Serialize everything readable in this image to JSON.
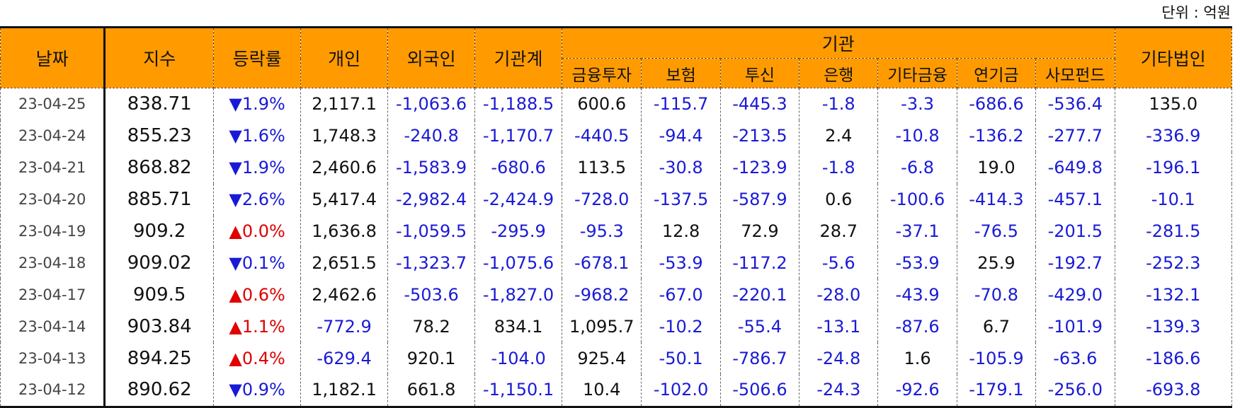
{
  "unit_label": "단위 : 억원",
  "header": {
    "date": "날짜",
    "index": "지수",
    "change": "등락률",
    "individual": "개인",
    "foreign": "외국인",
    "institution_total": "기관계",
    "institution_group": "기관",
    "other_corp": "기타법인",
    "sub": [
      "금융투자",
      "보험",
      "투신",
      "은행",
      "기타금융",
      "연기금",
      "사모펀드"
    ]
  },
  "colors": {
    "header_bg": "#ff9b00",
    "negative": "#1a1ad6",
    "up_arrow": "#e00000",
    "down_arrow": "#1a1ad6"
  },
  "rows": [
    {
      "date": "23-04-25",
      "index": "838.71",
      "dir": "down",
      "arrow": "▼",
      "change": "1.9%",
      "vals": [
        "2,117.1",
        "-1,063.6",
        "-1,188.5",
        "600.6",
        "-115.7",
        "-445.3",
        "-1.8",
        "-3.3",
        "-686.6",
        "-536.4",
        "135.0"
      ]
    },
    {
      "date": "23-04-24",
      "index": "855.23",
      "dir": "down",
      "arrow": "▼",
      "change": "1.6%",
      "vals": [
        "1,748.3",
        "-240.8",
        "-1,170.7",
        "-440.5",
        "-94.4",
        "-213.5",
        "2.4",
        "-10.8",
        "-136.2",
        "-277.7",
        "-336.9"
      ]
    },
    {
      "date": "23-04-21",
      "index": "868.82",
      "dir": "down",
      "arrow": "▼",
      "change": "1.9%",
      "vals": [
        "2,460.6",
        "-1,583.9",
        "-680.6",
        "113.5",
        "-30.8",
        "-123.9",
        "-1.8",
        "-6.8",
        "19.0",
        "-649.8",
        "-196.1"
      ]
    },
    {
      "date": "23-04-20",
      "index": "885.71",
      "dir": "down",
      "arrow": "▼",
      "change": "2.6%",
      "vals": [
        "5,417.4",
        "-2,982.4",
        "-2,424.9",
        "-728.0",
        "-137.5",
        "-587.9",
        "0.6",
        "-100.6",
        "-414.3",
        "-457.1",
        "-10.1"
      ]
    },
    {
      "date": "23-04-19",
      "index": "909.2",
      "dir": "up",
      "arrow": "▲",
      "change": "0.0%",
      "vals": [
        "1,636.8",
        "-1,059.5",
        "-295.9",
        "-95.3",
        "12.8",
        "72.9",
        "28.7",
        "-37.1",
        "-76.5",
        "-201.5",
        "-281.5"
      ]
    },
    {
      "date": "23-04-18",
      "index": "909.02",
      "dir": "down",
      "arrow": "▼",
      "change": "0.1%",
      "vals": [
        "2,651.5",
        "-1,323.7",
        "-1,075.6",
        "-678.1",
        "-53.9",
        "-117.2",
        "-5.6",
        "-53.9",
        "25.9",
        "-192.7",
        "-252.3"
      ]
    },
    {
      "date": "23-04-17",
      "index": "909.5",
      "dir": "up",
      "arrow": "▲",
      "change": "0.6%",
      "vals": [
        "2,462.6",
        "-503.6",
        "-1,827.0",
        "-968.2",
        "-67.0",
        "-220.1",
        "-28.0",
        "-43.9",
        "-70.8",
        "-429.0",
        "-132.1"
      ]
    },
    {
      "date": "23-04-14",
      "index": "903.84",
      "dir": "up",
      "arrow": "▲",
      "change": "1.1%",
      "vals": [
        "-772.9",
        "78.2",
        "834.1",
        "1,095.7",
        "-10.2",
        "-55.4",
        "-13.1",
        "-87.6",
        "6.7",
        "-101.9",
        "-139.3"
      ]
    },
    {
      "date": "23-04-13",
      "index": "894.25",
      "dir": "up",
      "arrow": "▲",
      "change": "0.4%",
      "vals": [
        "-629.4",
        "920.1",
        "-104.0",
        "925.4",
        "-50.1",
        "-786.7",
        "-24.8",
        "1.6",
        "-105.9",
        "-63.6",
        "-186.6"
      ]
    },
    {
      "date": "23-04-12",
      "index": "890.62",
      "dir": "down",
      "arrow": "▼",
      "change": "0.9%",
      "vals": [
        "1,182.1",
        "661.8",
        "-1,150.1",
        "10.4",
        "-102.0",
        "-506.6",
        "-24.3",
        "-92.6",
        "-179.1",
        "-256.0",
        "-693.8"
      ]
    }
  ]
}
